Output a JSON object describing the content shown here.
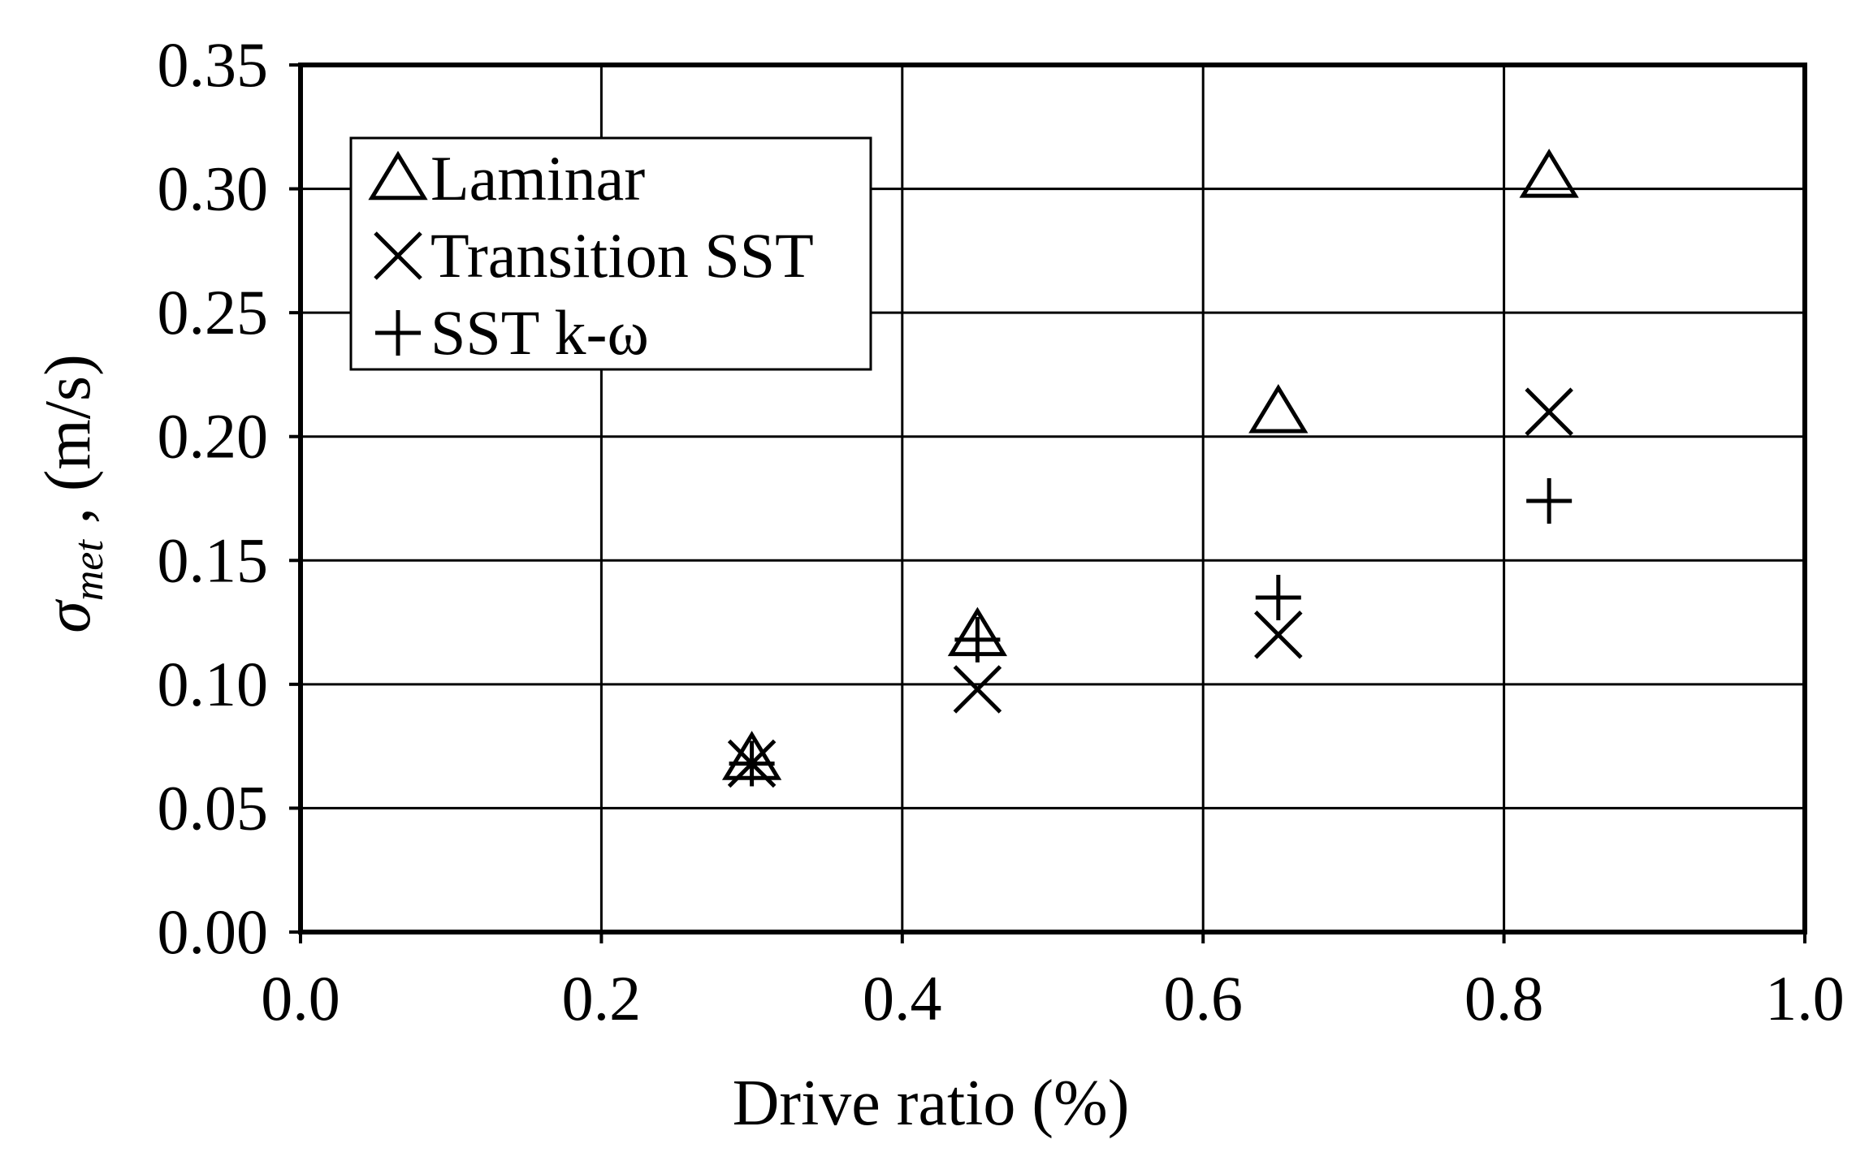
{
  "chart_data": {
    "type": "scatter",
    "xlabel": "Drive ratio (%)",
    "ylabel": {
      "symbol": "σ",
      "subscript": "met",
      "suffix": " , (m/s)"
    },
    "xlim": [
      0.0,
      1.0
    ],
    "ylim": [
      0.0,
      0.35
    ],
    "x_ticks": [
      "0.0",
      "0.2",
      "0.4",
      "0.6",
      "0.8",
      "1.0"
    ],
    "y_ticks": [
      "0.00",
      "0.05",
      "0.10",
      "0.15",
      "0.20",
      "0.25",
      "0.30",
      "0.35"
    ],
    "grid": true,
    "legend_position": "top-left",
    "series": [
      {
        "name": "Laminar",
        "marker": "triangle",
        "x": [
          0.3,
          0.45,
          0.65,
          0.83
        ],
        "y": [
          0.07,
          0.12,
          0.21,
          0.305
        ]
      },
      {
        "name": "Transition SST",
        "marker": "x",
        "x": [
          0.3,
          0.45,
          0.65,
          0.83
        ],
        "y": [
          0.068,
          0.098,
          0.12,
          0.21
        ]
      },
      {
        "name": "SST k-ω",
        "marker": "plus",
        "x": [
          0.3,
          0.45,
          0.65,
          0.83
        ],
        "y": [
          0.068,
          0.118,
          0.135,
          0.174
        ]
      }
    ]
  }
}
